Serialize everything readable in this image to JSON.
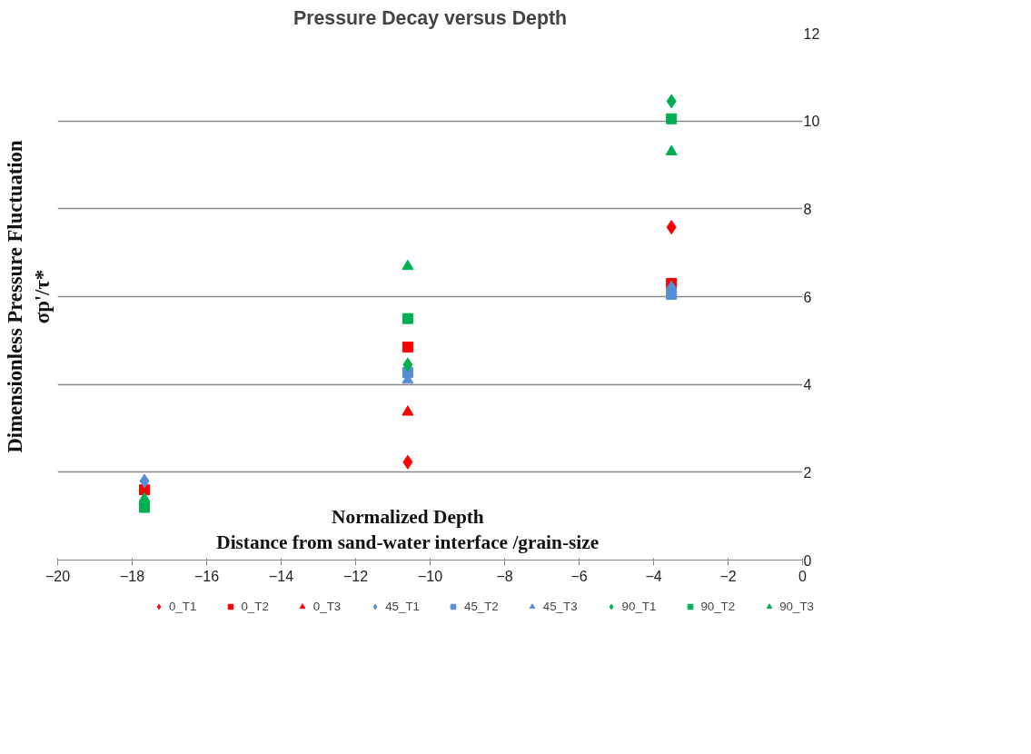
{
  "chart_data": {
    "type": "scatter",
    "title": "Pressure Decay versus Depth",
    "xlabel": "Normalized Depth\nDistance from sand-water interface /grain-size",
    "ylabel": "Dimensionless Pressure Fluctuation\nσp'/τ*",
    "x": [
      -17.67,
      -10.6,
      -3.52
    ],
    "series": [
      {
        "name": "0_T1",
        "color": "#ff0000",
        "marker": "diamond",
        "values": [
          null,
          2.23,
          7.58
        ]
      },
      {
        "name": "0_T2",
        "color": "#ff0000",
        "marker": "square",
        "values": [
          1.6,
          4.85,
          6.3
        ]
      },
      {
        "name": "0_T3",
        "color": "#ff0000",
        "marker": "triangle",
        "values": [
          null,
          3.37,
          null
        ]
      },
      {
        "name": "45_T1",
        "color": "#558ed5",
        "marker": "diamond",
        "values": [
          1.8,
          null,
          6.2
        ]
      },
      {
        "name": "45_T2",
        "color": "#558ed5",
        "marker": "square",
        "values": [
          null,
          4.27,
          6.05
        ]
      },
      {
        "name": "45_T3",
        "color": "#558ed5",
        "marker": "triangle",
        "values": [
          null,
          4.1,
          null
        ]
      },
      {
        "name": "90_T1",
        "color": "#00b050",
        "marker": "diamond",
        "values": [
          null,
          4.45,
          10.45
        ]
      },
      {
        "name": "90_T2",
        "color": "#00b050",
        "marker": "square",
        "values": [
          1.2,
          5.5,
          10.05
        ]
      },
      {
        "name": "90_T3",
        "color": "#00b050",
        "marker": "triangle",
        "values": [
          1.4,
          6.69,
          9.3
        ]
      }
    ],
    "xlim": [
      -20,
      0
    ],
    "xticks": [
      -20,
      -18,
      -16,
      -14,
      -12,
      -10,
      -8,
      -6,
      -4,
      -2,
      0
    ],
    "ylim": [
      0,
      12
    ],
    "yticks": [
      0,
      2,
      4,
      6,
      8,
      10,
      12
    ],
    "grid": "y",
    "legend": "bottom"
  }
}
